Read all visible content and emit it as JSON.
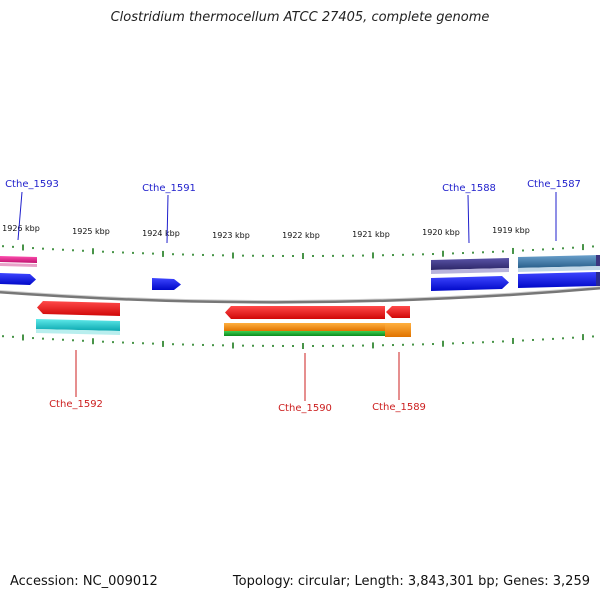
{
  "title": "Clostridium thermocellum ATCC 27405, complete genome",
  "accession": "Accession: NC_009012",
  "summary": "Topology: circular; Length: 3,843,301 bp; Genes: 3,259",
  "kbp_labels": [
    "1926 kbp",
    "1925 kbp",
    "1924 kbp",
    "1923 kbp",
    "1922 kbp",
    "1921 kbp",
    "1920 kbp",
    "1919 kbp"
  ],
  "gene_labels": [
    {
      "id": "Cthe_1593",
      "strand": "forward",
      "color": "#1f1fcc"
    },
    {
      "id": "Cthe_1591",
      "strand": "forward",
      "color": "#1f1fcc"
    },
    {
      "id": "Cthe_1588",
      "strand": "forward",
      "color": "#1f1fcc"
    },
    {
      "id": "Cthe_1587",
      "strand": "forward",
      "color": "#1f1fcc"
    },
    {
      "id": "Cthe_1592",
      "strand": "reverse",
      "color": "#cc1f1f"
    },
    {
      "id": "Cthe_1590",
      "strand": "reverse",
      "color": "#cc1f1f"
    },
    {
      "id": "Cthe_1589",
      "strand": "reverse",
      "color": "#cc1f1f"
    }
  ],
  "colors": {
    "backbone": "#888888",
    "tick": "#1a7a1a",
    "forward_gene": "#0a10e6",
    "reverse_gene": "#e60f0f",
    "magenta": "#e0208a",
    "navy": "#3c3580",
    "steel": "#3b78a8",
    "cyan": "#12c8c8",
    "orange": "#f08a10",
    "green": "#12a02a"
  }
}
